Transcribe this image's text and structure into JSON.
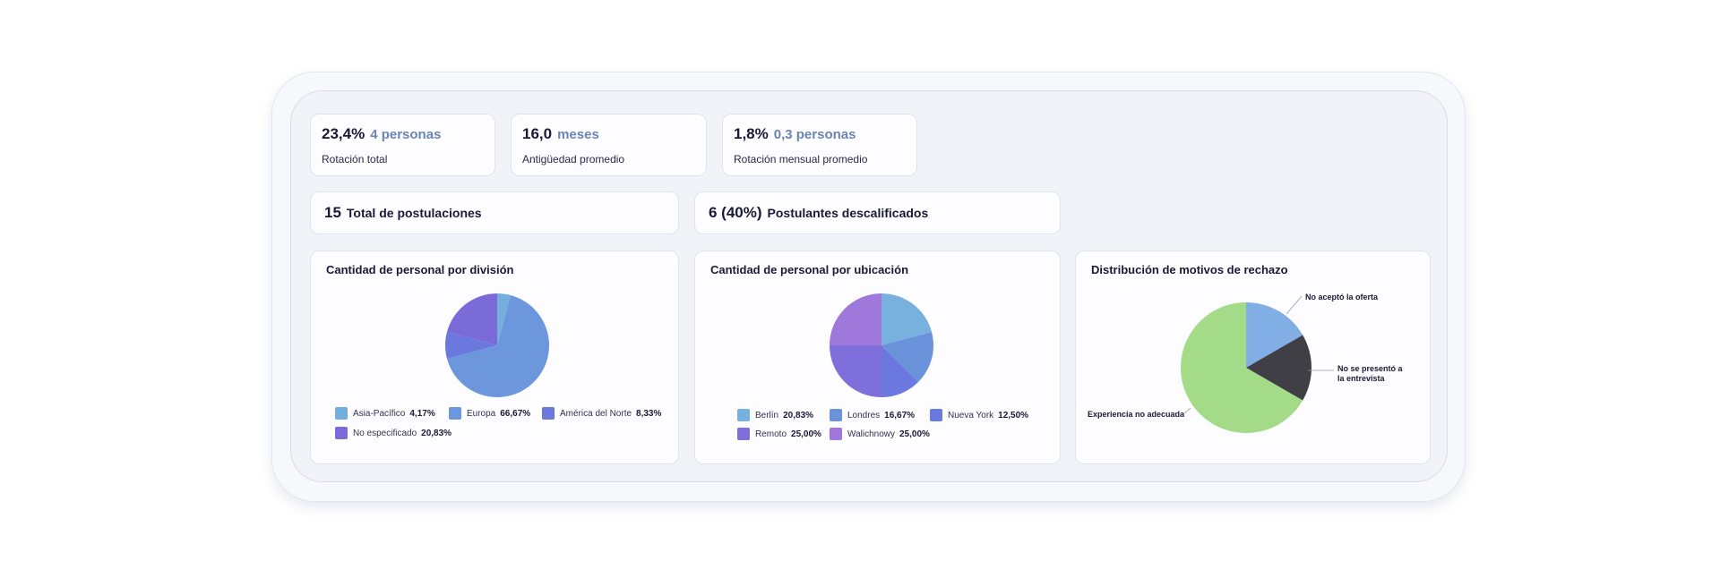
{
  "kpis": [
    {
      "value": "23,4%",
      "sub": "4 personas",
      "label": "Rotación total"
    },
    {
      "value": "16,0",
      "sub": "meses",
      "label": "Antigüedad promedio"
    },
    {
      "value": "1,8%",
      "sub": "0,3 personas",
      "label": "Rotación mensual promedio"
    }
  ],
  "wide": [
    {
      "value": "15",
      "label": "Total de postulaciones"
    },
    {
      "value": "6 (40%)",
      "label": "Postulantes descalificados"
    }
  ],
  "chart_data": [
    {
      "type": "pie",
      "title": "Cantidad de personal por división",
      "slices": [
        {
          "name": "Asia-Pacífico",
          "label": "4,17%",
          "value": 4.17,
          "color": "#75aedb"
        },
        {
          "name": "Europa",
          "label": "66,67%",
          "value": 66.67,
          "color": "#6c97dd"
        },
        {
          "name": "América del Norte",
          "label": "8,33%",
          "value": 8.33,
          "color": "#6b78de"
        },
        {
          "name": "No especificado",
          "label": "20,83%",
          "value": 20.83,
          "color": "#7a6bd9"
        }
      ]
    },
    {
      "type": "pie",
      "title": "Cantidad de personal por ubicación",
      "slices": [
        {
          "name": "Berlín",
          "label": "20,83%",
          "value": 20.83,
          "color": "#78b1dd"
        },
        {
          "name": "Londres",
          "label": "16,67%",
          "value": 16.67,
          "color": "#6b93dc"
        },
        {
          "name": "Nueva York",
          "label": "12,50%",
          "value": 12.5,
          "color": "#6b78de"
        },
        {
          "name": "Remoto",
          "label": "25,00%",
          "value": 25.0,
          "color": "#7e6fda"
        },
        {
          "name": "Walichnowy",
          "label": "25,00%",
          "value": 25.0,
          "color": "#9e78da"
        }
      ]
    },
    {
      "type": "pie",
      "title": "Distribución de motivos de rechazo",
      "slices": [
        {
          "name": "No aceptó la oferta",
          "value": 16.67,
          "color": "#82aee6"
        },
        {
          "name": "No se presentó a la entrevista",
          "value": 16.67,
          "color": "#403f46"
        },
        {
          "name": "Experiencia no adecuada",
          "value": 66.67,
          "color": "#a4db88"
        }
      ]
    }
  ]
}
